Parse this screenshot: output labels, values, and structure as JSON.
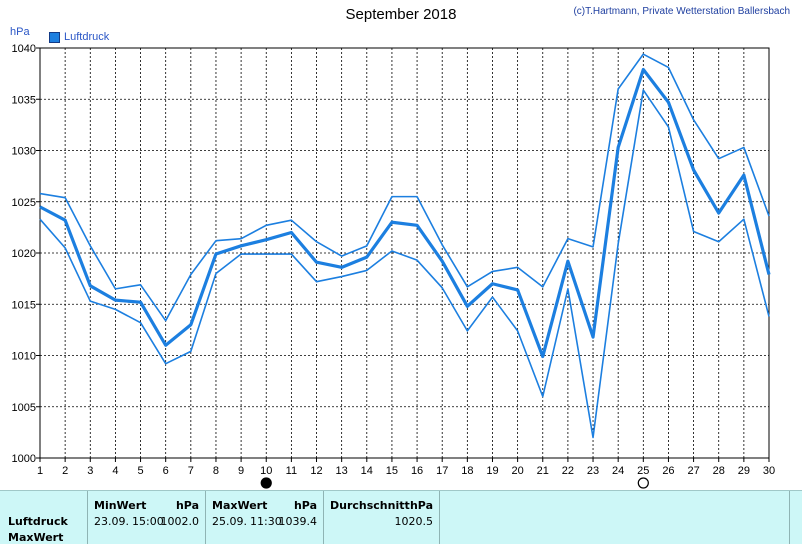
{
  "header": {
    "title": "September 2018",
    "credit": "(c)T.Hartmann, Private Wetterstation Ballersbach",
    "y_unit": "hPa",
    "legend_label": "Luftdruck"
  },
  "colors": {
    "line": "#1c7fe0",
    "grid": "#000000",
    "stats_bg": "#cdf7f7"
  },
  "chart_data": {
    "type": "line",
    "x_label": "",
    "y_label": "hPa",
    "xlim": [
      1,
      30
    ],
    "ylim": [
      1000,
      1040
    ],
    "x_ticks": [
      1,
      2,
      3,
      4,
      5,
      6,
      7,
      8,
      9,
      10,
      11,
      12,
      13,
      14,
      15,
      16,
      17,
      18,
      19,
      20,
      21,
      22,
      23,
      24,
      25,
      26,
      27,
      28,
      29,
      30
    ],
    "y_ticks": [
      1000,
      1005,
      1010,
      1015,
      1020,
      1025,
      1030,
      1035,
      1040
    ],
    "grid": true,
    "legend": "top-left",
    "markers": [
      {
        "x": 10,
        "symbol": "new-moon-icon"
      },
      {
        "x": 25,
        "symbol": "full-moon-icon"
      }
    ],
    "series": [
      {
        "name": "Luftdruck",
        "role": "max",
        "values": [
          1025.8,
          1025.4,
          1020.7,
          1016.5,
          1016.9,
          1013.4,
          1017.9,
          1021.2,
          1021.4,
          1022.7,
          1023.2,
          1021.1,
          1019.7,
          1020.7,
          1025.5,
          1025.5,
          1020.8,
          1016.7,
          1018.2,
          1018.6,
          1016.7,
          1021.4,
          1020.6,
          1036.0,
          1039.4,
          1038.1,
          1033.0,
          1029.2,
          1030.3,
          1023.6
        ]
      },
      {
        "name": "Luftdruck",
        "role": "avg",
        "values": [
          1024.5,
          1023.2,
          1016.8,
          1015.4,
          1015.2,
          1011.0,
          1013.0,
          1019.9,
          1020.7,
          1021.3,
          1022.0,
          1019.1,
          1018.6,
          1019.6,
          1023.0,
          1022.7,
          1019.2,
          1014.8,
          1017.0,
          1016.4,
          1009.9,
          1019.2,
          1011.8,
          1030.3,
          1037.9,
          1034.7,
          1028.1,
          1023.9,
          1027.6,
          1017.9
        ]
      },
      {
        "name": "Luftdruck",
        "role": "min",
        "values": [
          1023.3,
          1020.5,
          1015.3,
          1014.5,
          1013.2,
          1009.2,
          1010.4,
          1018.0,
          1019.9,
          1019.9,
          1019.9,
          1017.2,
          1017.7,
          1018.3,
          1020.2,
          1019.3,
          1016.6,
          1012.4,
          1015.7,
          1012.4,
          1006.0,
          1016.5,
          1002.0,
          1020.9,
          1035.9,
          1032.3,
          1022.1,
          1021.1,
          1023.3,
          1013.8
        ]
      }
    ]
  },
  "stats": {
    "row_label": "Luftdruck",
    "row_label2": "MaxWert",
    "min": {
      "header": "MinWert",
      "unit": "hPa",
      "date": "23.09.",
      "time": "15:00",
      "value": "1002.0"
    },
    "max": {
      "header": "MaxWert",
      "unit": "hPa",
      "date": "25.09.",
      "time": "11:30",
      "value": "1039.4"
    },
    "avg": {
      "header": "Durchschnitt",
      "unit": "hPa",
      "value": "1020.5"
    }
  }
}
